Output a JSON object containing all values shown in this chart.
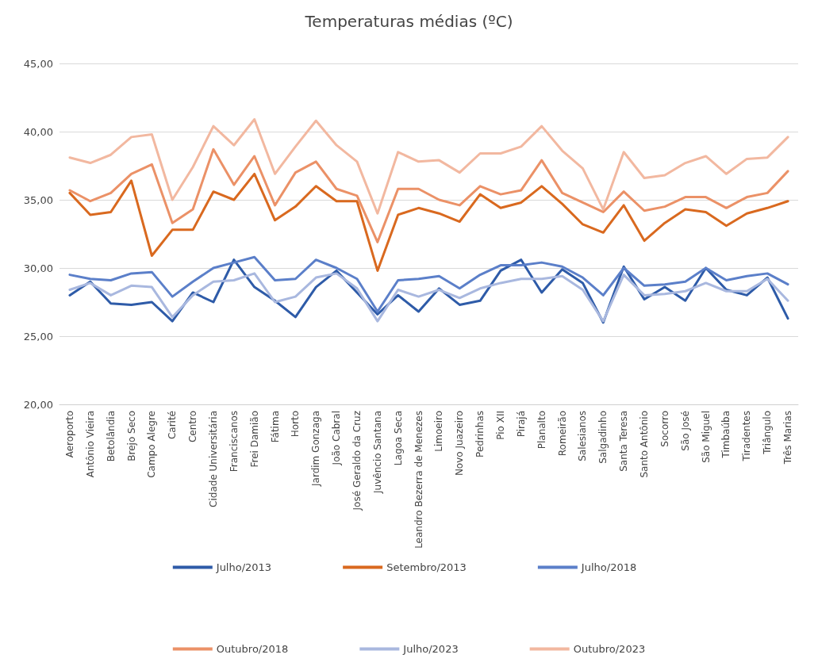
{
  "chart_data": {
    "type": "line",
    "title": "Temperaturas médias (ºC)",
    "categories": [
      "Aeroporto",
      "Antônio Vieira",
      "Betolândia",
      "Brejo Seco",
      "Campo Alegre",
      "Carité",
      "Centro",
      "Cidade Universitária",
      "Franciscanos",
      "Frei Damião",
      "Fátima",
      "Horto",
      "Jardim Gonzaga",
      "João Cabral",
      "José Geraldo da Cruz",
      "Juvêncio Santana",
      "Lagoa Seca",
      "Leandro Bezerra de Menezes",
      "Limoeiro",
      "Novo Juazeiro",
      "Pedrinhas",
      "Pio XII",
      "Pirajá",
      "Planalto",
      "Romeirão",
      "Salesianos",
      "Salgadinho",
      "Santa Teresa",
      "Santo Antônio",
      "Socorro",
      "São José",
      "São Miguel",
      "Timbaúba",
      "Tiradentes",
      "Triângulo",
      "Três Marias"
    ],
    "series": [
      {
        "name": "Julho/2013",
        "color": "#2e5ba8",
        "values": [
          28.0,
          29.0,
          27.4,
          27.3,
          27.5,
          26.1,
          28.2,
          27.5,
          30.6,
          28.6,
          27.6,
          26.4,
          28.6,
          29.8,
          28.2,
          26.6,
          28.0,
          26.8,
          28.5,
          27.3,
          27.6,
          29.8,
          30.6,
          28.2,
          29.9,
          28.9,
          26.0,
          30.1,
          27.7,
          28.6,
          27.6,
          30.0,
          28.4,
          28.0,
          29.3,
          26.3
        ]
      },
      {
        "name": "Setembro/2013",
        "color": "#d9691f",
        "values": [
          35.5,
          33.9,
          34.1,
          36.4,
          30.9,
          32.8,
          32.8,
          35.6,
          35.0,
          36.9,
          33.5,
          34.5,
          36.0,
          34.9,
          34.9,
          29.8,
          33.9,
          34.4,
          34.0,
          33.4,
          35.4,
          34.4,
          34.8,
          36.0,
          34.7,
          33.2,
          32.6,
          34.6,
          32.0,
          33.3,
          34.3,
          34.1,
          33.1,
          34.0,
          34.4,
          34.9
        ]
      },
      {
        "name": "Julho/2018",
        "color": "#5b7fc9",
        "values": [
          29.5,
          29.2,
          29.1,
          29.6,
          29.7,
          27.9,
          29.0,
          30.0,
          30.4,
          30.8,
          29.1,
          29.2,
          30.6,
          30.0,
          29.2,
          26.8,
          29.1,
          29.2,
          29.4,
          28.5,
          29.5,
          30.2,
          30.2,
          30.4,
          30.1,
          29.3,
          28.0,
          30.0,
          28.7,
          28.8,
          29.0,
          30.0,
          29.1,
          29.4,
          29.6,
          28.8
        ]
      },
      {
        "name": "Outubro/2018",
        "color": "#eb9167",
        "values": [
          35.7,
          34.9,
          35.5,
          36.9,
          37.6,
          33.3,
          34.3,
          38.7,
          36.1,
          38.2,
          34.6,
          37.0,
          37.8,
          35.8,
          35.3,
          31.9,
          35.8,
          35.8,
          35.0,
          34.6,
          36.0,
          35.4,
          35.7,
          37.9,
          35.5,
          34.8,
          34.1,
          35.6,
          34.2,
          34.5,
          35.2,
          35.2,
          34.4,
          35.2,
          35.5,
          37.1
        ]
      },
      {
        "name": "Julho/2023",
        "color": "#a9b8df",
        "values": [
          28.4,
          28.9,
          28.0,
          28.7,
          28.6,
          26.4,
          28.0,
          29.0,
          29.1,
          29.6,
          27.5,
          27.9,
          29.3,
          29.6,
          28.5,
          26.1,
          28.4,
          27.9,
          28.4,
          27.8,
          28.5,
          28.9,
          29.2,
          29.2,
          29.4,
          28.4,
          26.1,
          29.5,
          28.0,
          28.1,
          28.3,
          28.9,
          28.3,
          28.3,
          29.2,
          27.6
        ]
      },
      {
        "name": "Outubro/2023",
        "color": "#f2b8a0",
        "values": [
          38.1,
          37.7,
          38.3,
          39.6,
          39.8,
          35.0,
          37.4,
          40.4,
          39.0,
          40.9,
          36.9,
          38.9,
          40.8,
          39.0,
          37.8,
          34.0,
          38.5,
          37.8,
          37.9,
          37.0,
          38.4,
          38.4,
          38.9,
          40.4,
          38.6,
          37.3,
          34.3,
          38.5,
          36.6,
          36.8,
          37.7,
          38.2,
          36.9,
          38.0,
          38.1,
          39.6
        ]
      }
    ],
    "ylim": [
      20,
      45
    ],
    "yticks": [
      {
        "value": 20,
        "label": "20,00"
      },
      {
        "value": 25,
        "label": "25,00"
      },
      {
        "value": 30,
        "label": "30,00"
      },
      {
        "value": 35,
        "label": "35,00"
      },
      {
        "value": 40,
        "label": "40,00"
      },
      {
        "value": 45,
        "label": "45,00"
      }
    ],
    "grid": "y",
    "legend": "bottom",
    "marker": "none",
    "line_style": "solid"
  }
}
